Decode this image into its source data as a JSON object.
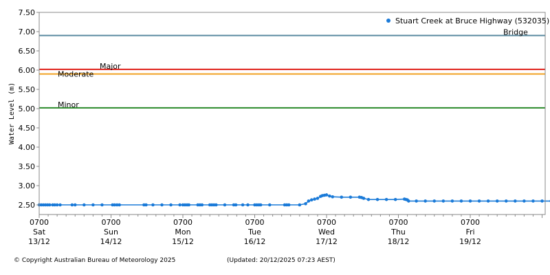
{
  "footer": {
    "copyright": "© Copyright Australian Bureau of Meteorology 2025",
    "updated": "(Updated: 20/12/2025 07:23 AEST)"
  },
  "chart_data": {
    "type": "line",
    "ylabel": "Water Level (m)",
    "ylim": [
      2.3,
      7.5
    ],
    "yticks": [
      "7.50",
      "7.00",
      "6.50",
      "6.00",
      "5.50",
      "5.00",
      "4.50",
      "4.00",
      "3.50",
      "3.00",
      "2.50"
    ],
    "xlim_hours": [
      0,
      176
    ],
    "xticks": [
      {
        "time": "0700",
        "day": "Sat",
        "date": "13/12",
        "hour": 0
      },
      {
        "time": "0700",
        "day": "Sun",
        "date": "14/12",
        "hour": 24
      },
      {
        "time": "0700",
        "day": "Mon",
        "date": "15/12",
        "hour": 48
      },
      {
        "time": "0700",
        "day": "Tue",
        "date": "16/12",
        "hour": 72
      },
      {
        "time": "0700",
        "day": "Wed",
        "date": "17/12",
        "hour": 96
      },
      {
        "time": "0700",
        "day": "Thu",
        "date": "18/12",
        "hour": 120
      },
      {
        "time": "0700",
        "day": "Fri",
        "date": "19/12",
        "hour": 144
      }
    ],
    "grid": false,
    "legend_position": "top-right",
    "thresholds": [
      {
        "label": "Bridge",
        "value": 6.9,
        "color": "#5a8aa0"
      },
      {
        "label": "Major",
        "value": 6.02,
        "color": "#e0201a"
      },
      {
        "label": "Moderate",
        "value": 5.9,
        "color": "#f0a020"
      },
      {
        "label": "Minor",
        "value": 5.02,
        "color": "#2a8a2a"
      }
    ],
    "series": [
      {
        "name": "Stuart Creek at Bruce Highway (532035)",
        "color": "#1a7ad8",
        "x": [
          0,
          0.7,
          1.4,
          2.1,
          2.8,
          3.5,
          4.5,
          5.2,
          6,
          7,
          11,
          12,
          15,
          18,
          21,
          24.5,
          25.2,
          26,
          26.8,
          35,
          35.7,
          38,
          41,
          44,
          47,
          48,
          48.7,
          49.4,
          50,
          53,
          53.7,
          54.4,
          57,
          57.7,
          58.4,
          59.1,
          62,
          65,
          65.7,
          68,
          69.7,
          72,
          72.7,
          73.4,
          74,
          77,
          82,
          82.7,
          83.4,
          87,
          89,
          90,
          91,
          92,
          93,
          94,
          94.6,
          95.3,
          96,
          97,
          98,
          101,
          104,
          107,
          107.7,
          108.4,
          110,
          113,
          116,
          119,
          122,
          122.5,
          123,
          123.4,
          126,
          129,
          132,
          135,
          138,
          141,
          144,
          147,
          150,
          153,
          156,
          159,
          162,
          165,
          168,
          171,
          174
        ],
        "y": [
          2.5,
          2.5,
          2.5,
          2.5,
          2.5,
          2.5,
          2.5,
          2.5,
          2.5,
          2.5,
          2.5,
          2.5,
          2.5,
          2.5,
          2.5,
          2.5,
          2.5,
          2.5,
          2.5,
          2.5,
          2.5,
          2.5,
          2.5,
          2.5,
          2.5,
          2.5,
          2.5,
          2.5,
          2.5,
          2.5,
          2.5,
          2.5,
          2.5,
          2.5,
          2.5,
          2.5,
          2.5,
          2.5,
          2.5,
          2.5,
          2.5,
          2.5,
          2.5,
          2.5,
          2.5,
          2.5,
          2.5,
          2.5,
          2.5,
          2.5,
          2.53,
          2.6,
          2.63,
          2.65,
          2.67,
          2.72,
          2.74,
          2.75,
          2.76,
          2.73,
          2.71,
          2.7,
          2.7,
          2.7,
          2.69,
          2.67,
          2.64,
          2.64,
          2.64,
          2.64,
          2.65,
          2.64,
          2.63,
          2.6,
          2.6,
          2.6,
          2.6,
          2.6,
          2.6,
          2.6,
          2.6,
          2.6,
          2.6,
          2.6,
          2.6,
          2.6,
          2.6,
          2.6,
          2.6,
          2.6,
          2.6
        ]
      }
    ]
  }
}
